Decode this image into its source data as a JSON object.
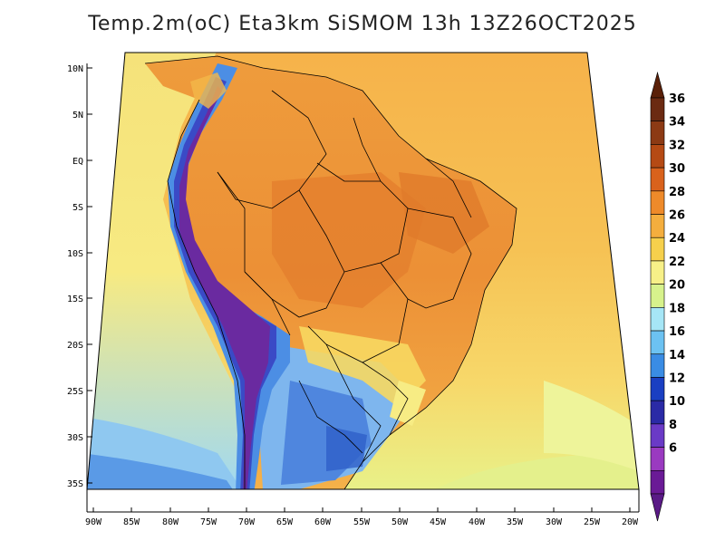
{
  "title": "Temp.2m(oC) Eta3km SiSMOM 13h 13Z26OCT2025",
  "colors": {
    "ocean_warm": "#F6C85C",
    "ocean_mid": "#F7E27A",
    "ocean_cool": "#8FD3F2",
    "land_hot": "#E8943A",
    "land_warm": "#F2B04A",
    "andes": "#6A2AA0",
    "cold_south": "#4F8EE0",
    "border": "#000000"
  },
  "map": {
    "lat_labels": [
      "10N",
      "5N",
      "EQ",
      "5S",
      "10S",
      "15S",
      "20S",
      "25S",
      "30S",
      "35S"
    ],
    "lon_labels": [
      "90W",
      "85W",
      "80W",
      "75W",
      "70W",
      "65W",
      "60W",
      "55W",
      "50W",
      "45W",
      "40W",
      "35W",
      "30W",
      "25W",
      "20W"
    ]
  },
  "colorbar": {
    "labels": [
      "36",
      "34",
      "32",
      "30",
      "28",
      "26",
      "24",
      "22",
      "20",
      "18",
      "16",
      "14",
      "12",
      "10",
      "8",
      "6"
    ],
    "colors": [
      "#6B2A12",
      "#8C3A14",
      "#B54A14",
      "#D9621C",
      "#EE8A2A",
      "#F4AE3E",
      "#F6D04C",
      "#F7F088",
      "#D7F28C",
      "#A6E6F6",
      "#6CC2F2",
      "#3A8CE4",
      "#1A3FC2",
      "#2A2AA6",
      "#6A3AC6",
      "#9A3AC0",
      "#6A1A96"
    ],
    "top_color": "#5A2008",
    "bottom_color": "#5A1A86"
  }
}
